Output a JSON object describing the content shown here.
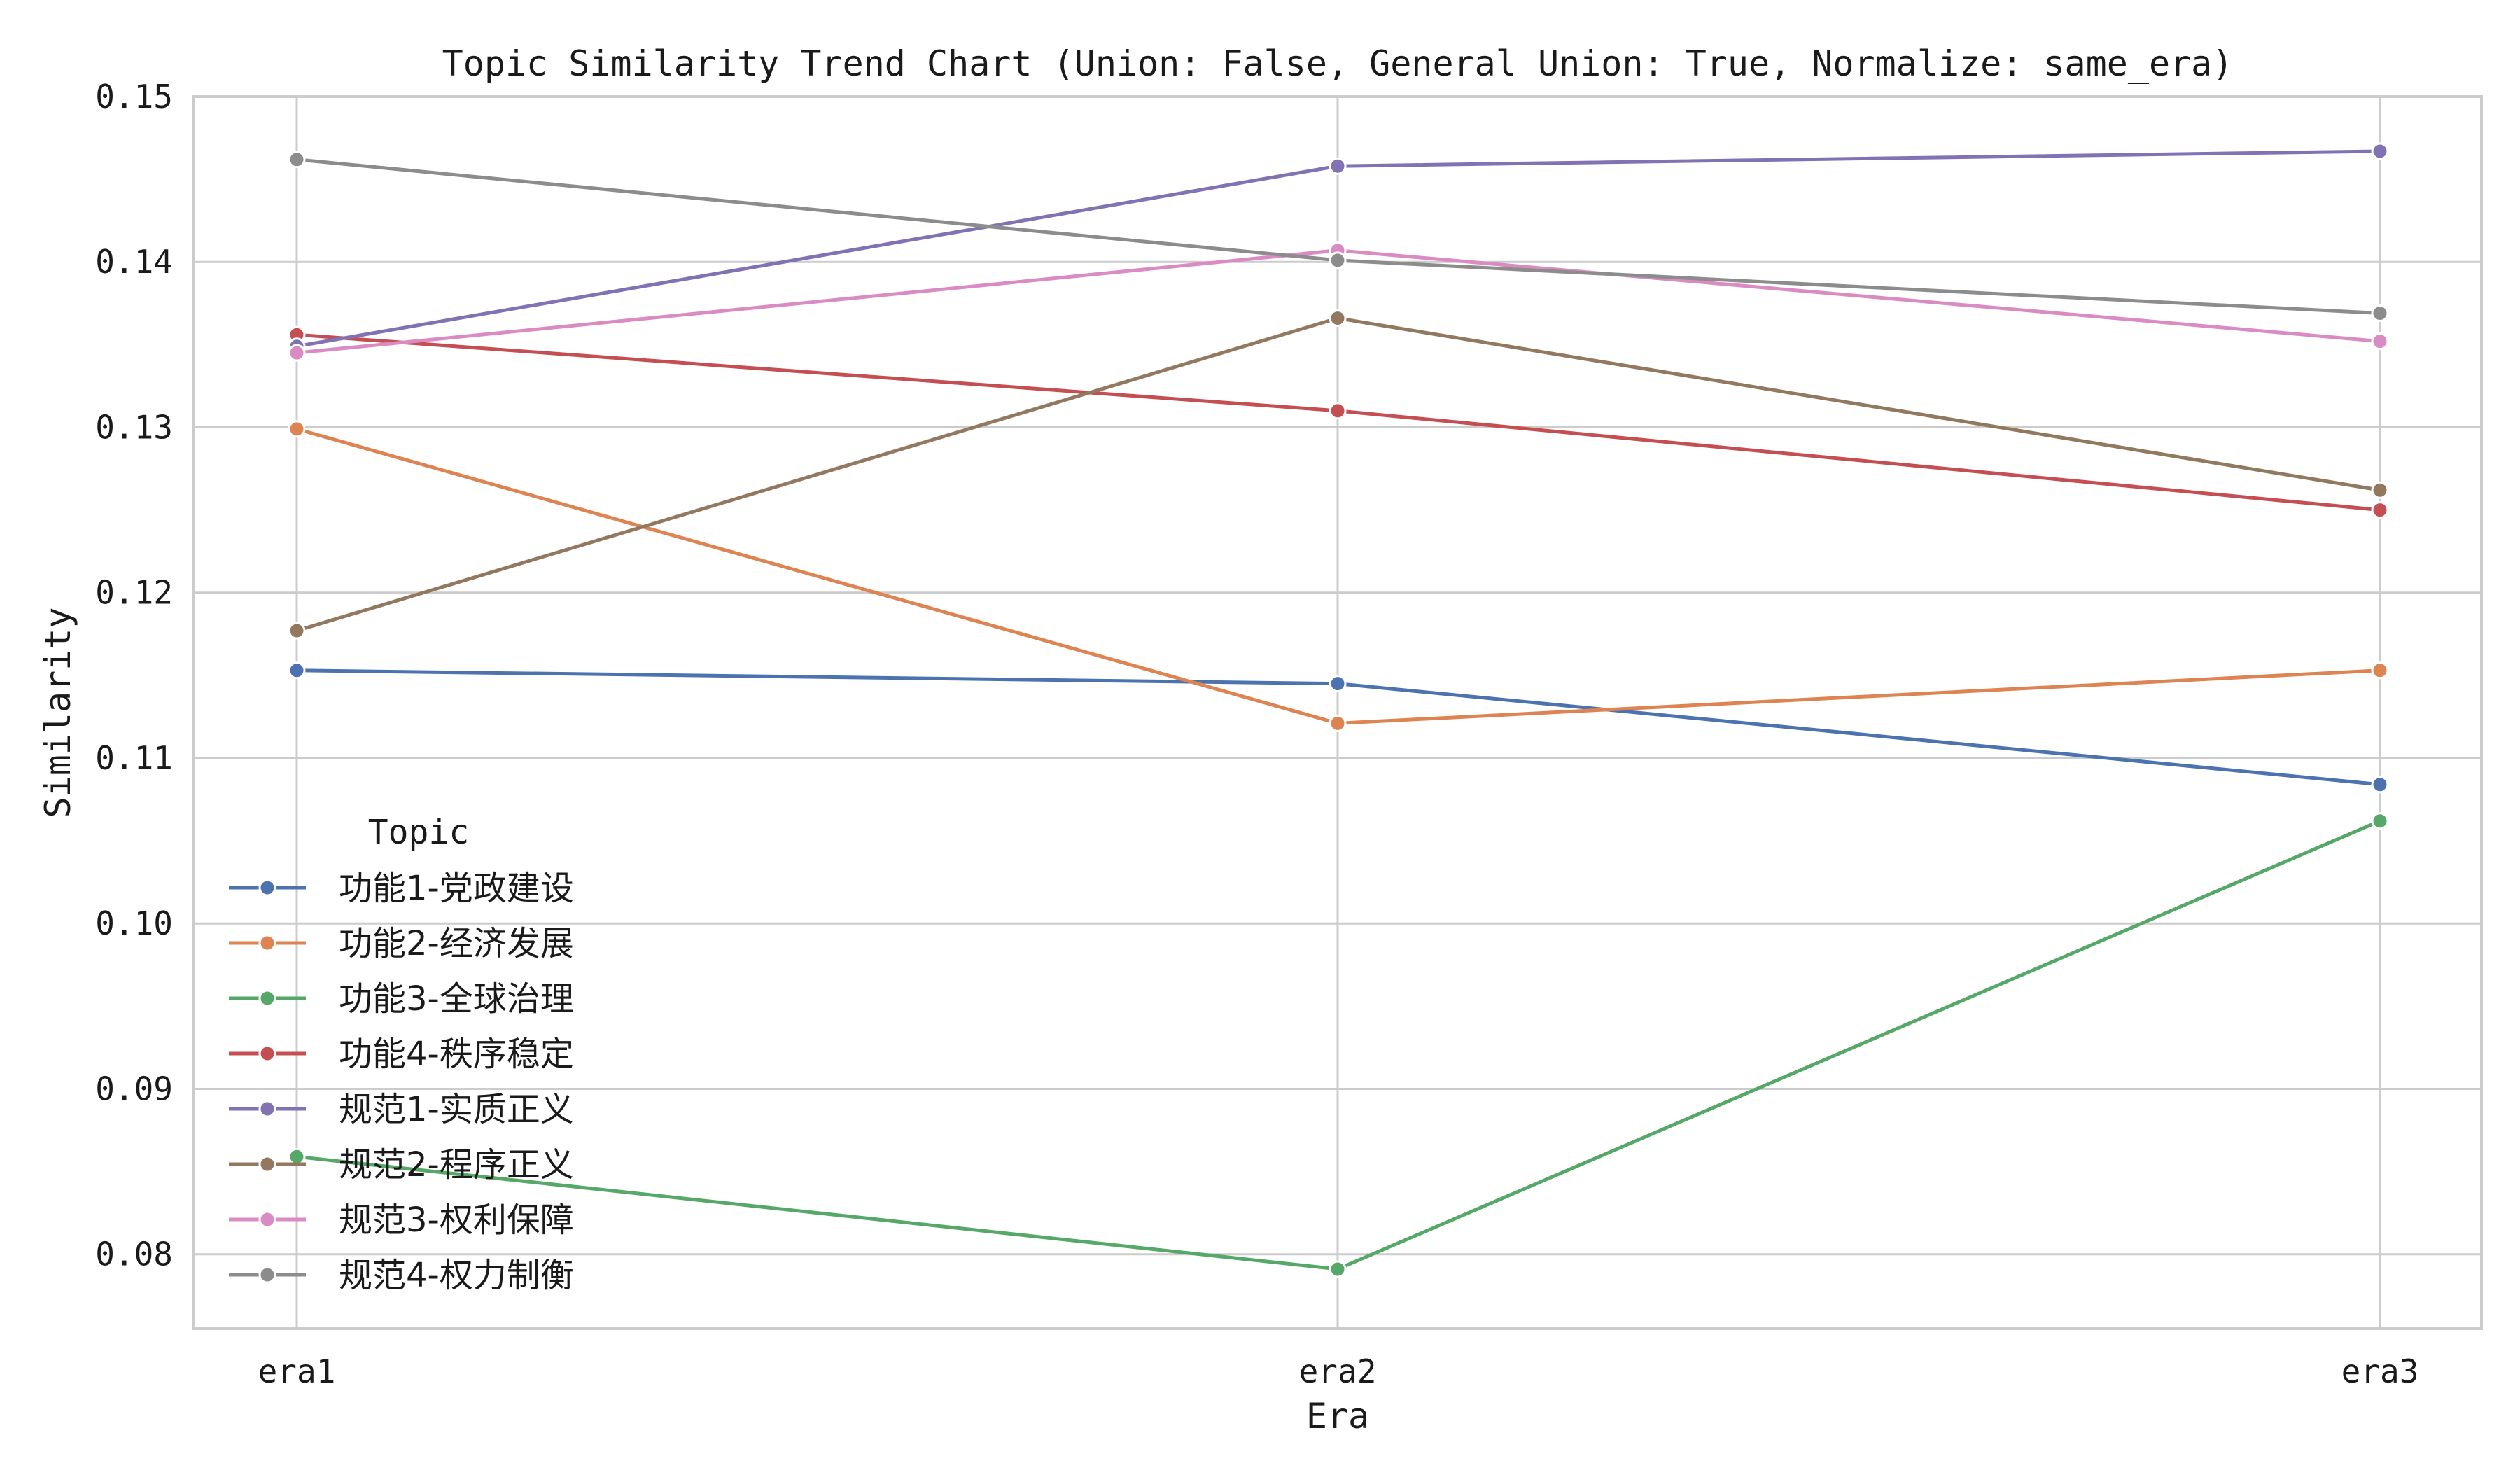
{
  "chart_data": {
    "type": "line",
    "title": "Topic Similarity Trend Chart (Union: False, General Union: True, Normalize: same_era)",
    "xlabel": "Era",
    "ylabel": "Similarity",
    "categories": [
      "era1",
      "era2",
      "era3"
    ],
    "ylim": [
      0.0755,
      0.15
    ],
    "yticks": [
      0.08,
      0.09,
      0.1,
      0.11,
      0.12,
      0.13,
      0.14,
      0.15
    ],
    "ytick_labels": [
      "0.08",
      "0.09",
      "0.10",
      "0.11",
      "0.12",
      "0.13",
      "0.14",
      "0.15"
    ],
    "grid": true,
    "legend": {
      "title": "Topic",
      "placement": "lower-left"
    },
    "series": [
      {
        "name": "功能1-党政建设",
        "color": "#4c72b0",
        "values": [
          0.1153,
          0.1145,
          0.1084
        ]
      },
      {
        "name": "功能2-经济发展",
        "color": "#dd8452",
        "values": [
          0.1299,
          0.1121,
          0.1153
        ]
      },
      {
        "name": "功能3-全球治理",
        "color": "#55a868",
        "values": [
          0.0859,
          0.0791,
          0.1062
        ]
      },
      {
        "name": "功能4-秩序稳定",
        "color": "#c44e52",
        "values": [
          0.1356,
          0.131,
          0.125
        ]
      },
      {
        "name": "规范1-实质正义",
        "color": "#8172b3",
        "values": [
          0.1349,
          0.1458,
          0.1467
        ]
      },
      {
        "name": "规范2-程序正义",
        "color": "#937860",
        "values": [
          0.1177,
          0.1366,
          0.1262
        ]
      },
      {
        "name": "规范3-权利保障",
        "color": "#da8bc3",
        "values": [
          0.1345,
          0.1407,
          0.1352
        ]
      },
      {
        "name": "规范4-权力制衡",
        "color": "#8c8c8c",
        "values": [
          0.1462,
          0.1401,
          0.1369
        ]
      }
    ]
  }
}
